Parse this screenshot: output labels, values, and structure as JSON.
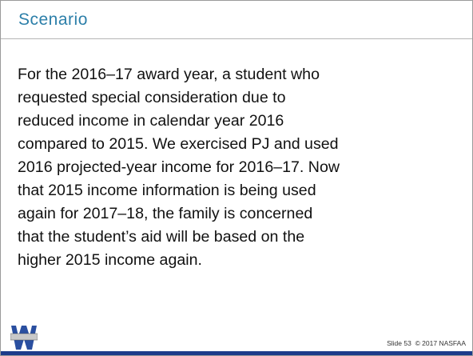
{
  "header": {
    "title": "Scenario"
  },
  "body": {
    "lines": [
      "For the 2016–17 award year, a student who",
      "requested special consideration due to",
      "reduced income in calendar year 2016",
      "compared to 2015. We exercised PJ and used",
      "2016 projected-year income for 2016–17. Now",
      "that 2015 income information is being used",
      "again for 2017–18, the family is concerned",
      "that the student’s aid will be based on the",
      "higher 2015 income again."
    ]
  },
  "footer": {
    "slide": "Slide 53",
    "copyright": "© 2017 NASFAA"
  }
}
